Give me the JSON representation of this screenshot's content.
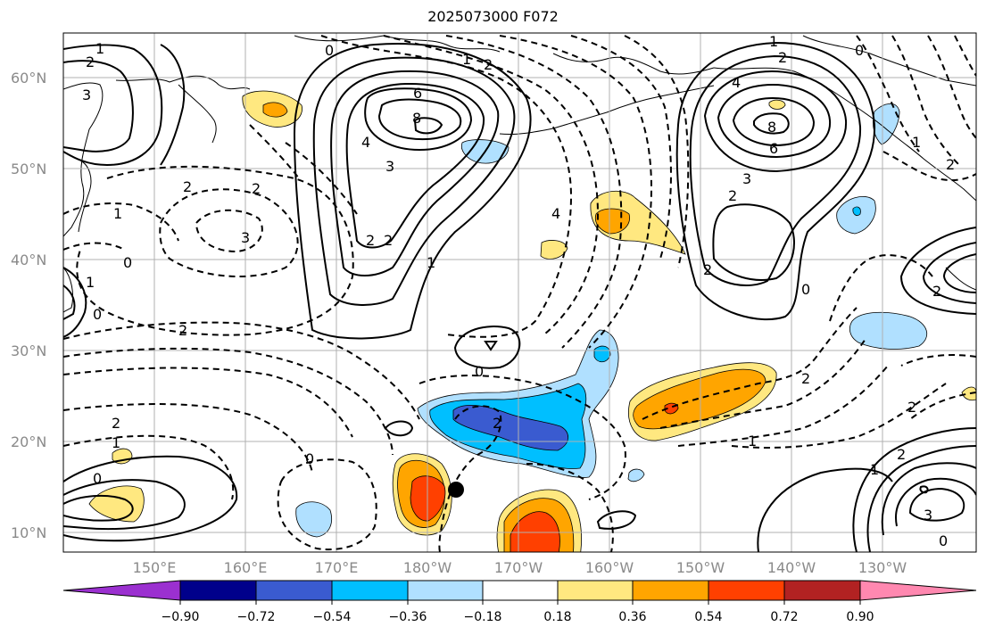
{
  "title": "2025073000 F072",
  "lat_labels": [
    "60°N",
    "50°N",
    "40°N",
    "30°N",
    "20°N",
    "10°N"
  ],
  "lon_labels": [
    "150°E",
    "160°E",
    "170°E",
    "180°W",
    "170°W",
    "160°W",
    "150°W",
    "140°W",
    "130°W"
  ],
  "colorbar": {
    "tick_labels": [
      "−0.90",
      "−0.72",
      "−0.54",
      "−0.36",
      "−0.18",
      "0.18",
      "0.36",
      "0.54",
      "0.72",
      "0.90"
    ],
    "colors": [
      "#9b30d0",
      "#00008b",
      "#3a5bd0",
      "#00bfff",
      "#b0e0ff",
      "#ffffff",
      "#ffe880",
      "#ffa500",
      "#ff4000",
      "#b22222",
      "#ff88b0"
    ]
  },
  "contour_labels": [
    "1",
    "2",
    "3",
    "0",
    "1",
    "2",
    "6",
    "8",
    "4",
    "3",
    "2",
    "2",
    "1",
    "1",
    "2",
    "4",
    "8",
    "6",
    "3",
    "2",
    "2",
    "0",
    "1",
    "2",
    "0",
    "2",
    "3",
    "1",
    "0",
    "2",
    "2",
    "1",
    "0",
    "0",
    "2",
    "2",
    "1",
    "0",
    "1",
    "2",
    "3",
    "0",
    "0",
    "2",
    "1",
    "4",
    "2",
    "2"
  ],
  "marker": "storm-center"
}
